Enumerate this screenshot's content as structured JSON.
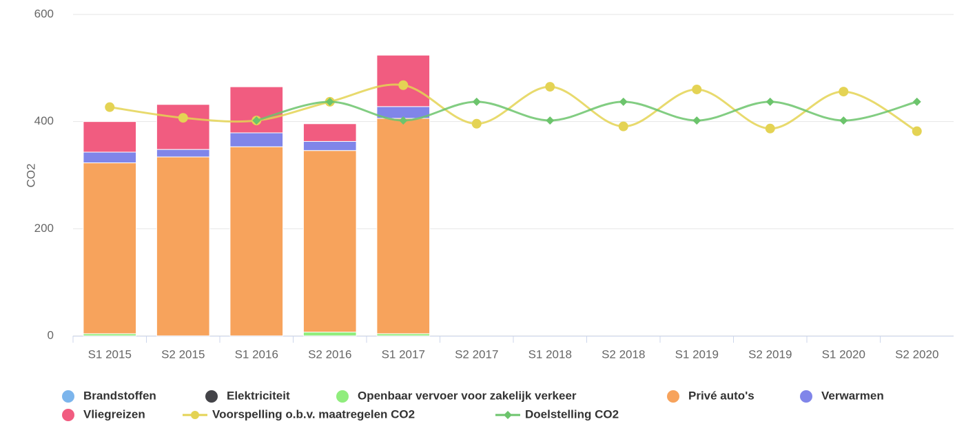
{
  "chart_data": {
    "type": "bar",
    "stacked": true,
    "y_label": "CO2",
    "categories": [
      "S1 2015",
      "S2 2015",
      "S1 2016",
      "S2 2016",
      "S1 2017",
      "S2 2017",
      "S1 2018",
      "S2 2018",
      "S1 2019",
      "S2 2019",
      "S1 2020",
      "S2 2020"
    ],
    "ylim": [
      0,
      600
    ],
    "yticks": [
      0,
      200,
      400,
      600
    ],
    "grid": true,
    "series": [
      {
        "name": "Brandstoffen",
        "color": "#7cb5ec",
        "type": "column",
        "values": [
          0,
          0,
          0,
          0,
          0,
          null,
          null,
          null,
          null,
          null,
          null,
          null
        ]
      },
      {
        "name": "Elektriciteit",
        "color": "#434348",
        "type": "column",
        "values": [
          0,
          0,
          0,
          0,
          0,
          null,
          null,
          null,
          null,
          null,
          null,
          null
        ]
      },
      {
        "name": "Openbaar vervoer voor zakelijk verkeer",
        "color": "#90ed7d",
        "type": "column",
        "values": [
          4,
          0,
          0,
          7,
          4,
          null,
          null,
          null,
          null,
          null,
          null,
          null
        ]
      },
      {
        "name": "Privé auto's",
        "color": "#f7a35c",
        "type": "column",
        "values": [
          319,
          334,
          353,
          339,
          402,
          null,
          null,
          null,
          null,
          null,
          null,
          null
        ]
      },
      {
        "name": "Verwarmen",
        "color": "#8085e9",
        "type": "column",
        "values": [
          20,
          14,
          26,
          17,
          22,
          null,
          null,
          null,
          null,
          null,
          null,
          null
        ]
      },
      {
        "name": "Vliegreizen",
        "color": "#f15c80",
        "type": "column",
        "values": [
          57,
          84,
          86,
          33,
          96,
          null,
          null,
          null,
          null,
          null,
          null,
          null
        ]
      },
      {
        "name": "Voorspelling o.b.v. maatregelen CO2",
        "color": "#e4d354",
        "type": "spline",
        "marker": "circle",
        "values": [
          427,
          407,
          402,
          437,
          468,
          396,
          465,
          391,
          460,
          387,
          456,
          382
        ]
      },
      {
        "name": "Doelstelling CO2",
        "color": "#6cc46c",
        "type": "spline",
        "marker": "diamond",
        "values": [
          null,
          null,
          402,
          437,
          402,
          437,
          402,
          437,
          402,
          437,
          402,
          437
        ]
      }
    ]
  }
}
